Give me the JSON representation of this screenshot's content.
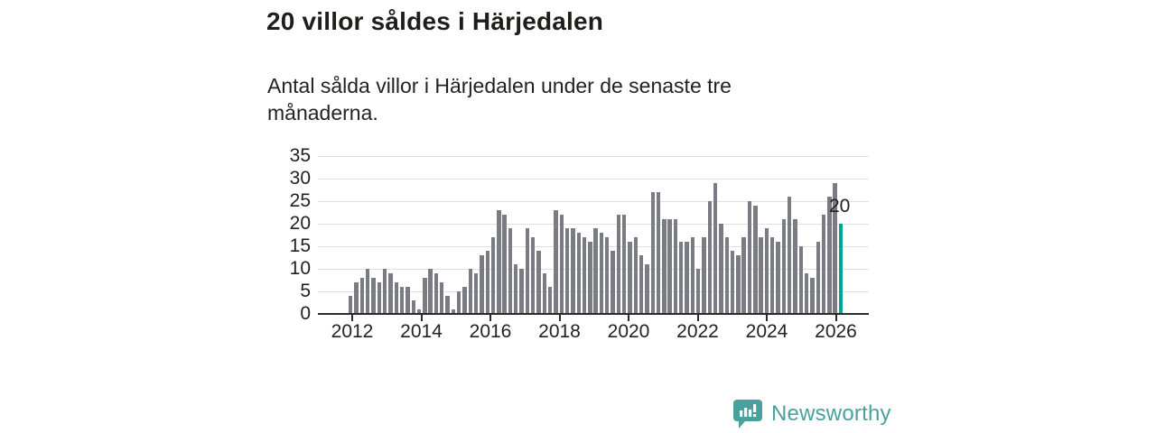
{
  "header": {
    "title": "20 villor såldes i Härjedalen",
    "subtitle": "Antal sålda villor i Härjedalen under de senaste tre månaderna."
  },
  "annotation": {
    "last_value_label": "20"
  },
  "branding": {
    "logo_text": "Newsworthy",
    "logo_icon": "newsworthy-speech-bubble-bar-chart-icon"
  },
  "colors": {
    "bar": "#7b7b83",
    "highlight": "#00a69b",
    "brand": "#48a19d",
    "grid": "#e0e0e0",
    "axis": "#2a2a2a",
    "text": "#1a1a1a"
  },
  "chart_data": {
    "type": "bar",
    "title": "20 villor såldes i Härjedalen",
    "subtitle": "Antal sålda villor i Härjedalen under de senaste tre månaderna.",
    "xlabel": "",
    "ylabel": "",
    "ylim": [
      0,
      35
    ],
    "yticks": [
      0,
      5,
      10,
      15,
      20,
      25,
      30,
      35
    ],
    "xtick_labels": [
      "2012",
      "2014",
      "2016",
      "2018",
      "2020",
      "2022",
      "2024",
      "2026"
    ],
    "grid": "horizontal",
    "legend": "none",
    "highlight_index": 86,
    "highlight_value_label": "20",
    "categories": [
      "2012-01",
      "2012-03",
      "2012-05",
      "2012-07",
      "2012-09",
      "2012-11",
      "2013-01",
      "2013-03",
      "2013-05",
      "2013-07",
      "2013-09",
      "2013-11",
      "2014-01",
      "2014-03",
      "2014-05",
      "2014-07",
      "2014-09",
      "2014-11",
      "2015-01",
      "2015-03",
      "2015-05",
      "2015-07",
      "2015-09",
      "2015-11",
      "2016-01",
      "2016-03",
      "2016-05",
      "2016-07",
      "2016-09",
      "2016-11",
      "2017-01",
      "2017-03",
      "2017-05",
      "2017-07",
      "2017-09",
      "2017-11",
      "2018-01",
      "2018-03",
      "2018-05",
      "2018-07",
      "2018-09",
      "2018-11",
      "2019-01",
      "2019-03",
      "2019-05",
      "2019-07",
      "2019-09",
      "2019-11",
      "2020-01",
      "2020-03",
      "2020-05",
      "2020-07",
      "2020-09",
      "2020-11",
      "2021-01",
      "2021-03",
      "2021-05",
      "2021-07",
      "2021-09",
      "2021-11",
      "2022-01",
      "2022-03",
      "2022-05",
      "2022-07",
      "2022-09",
      "2022-11",
      "2023-01",
      "2023-03",
      "2023-05",
      "2023-07",
      "2023-09",
      "2023-11",
      "2024-01",
      "2024-03",
      "2024-05",
      "2024-07",
      "2024-09",
      "2024-11",
      "2025-01",
      "2025-03",
      "2025-05",
      "2025-07",
      "2025-09",
      "2025-11",
      "2026-01",
      "2026-03",
      "2026-05"
    ],
    "values": [
      4,
      7,
      8,
      10,
      8,
      7,
      10,
      9,
      7,
      6,
      6,
      3,
      1,
      8,
      10,
      9,
      7,
      4,
      1,
      5,
      6,
      10,
      9,
      13,
      14,
      17,
      23,
      22,
      19,
      11,
      10,
      19,
      17,
      14,
      9,
      6,
      23,
      22,
      19,
      19,
      18,
      17,
      16,
      19,
      18,
      17,
      14,
      22,
      22,
      16,
      17,
      13,
      11,
      27,
      27,
      21,
      21,
      21,
      16,
      16,
      17,
      10,
      17,
      25,
      29,
      20,
      17,
      14,
      13,
      17,
      25,
      24,
      17,
      19,
      17,
      16,
      21,
      26,
      21,
      15,
      9,
      8,
      16,
      22,
      26,
      29,
      20
    ]
  }
}
